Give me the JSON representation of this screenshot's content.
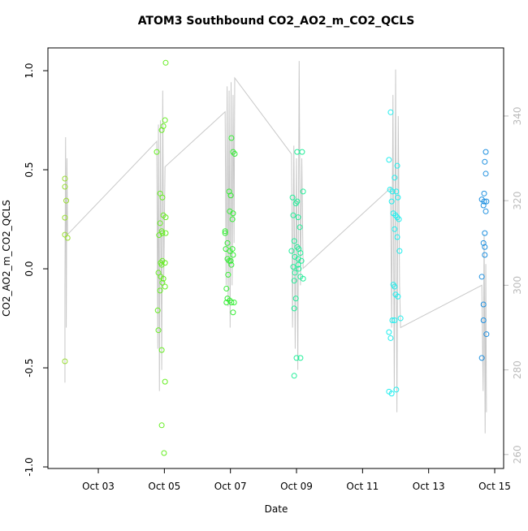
{
  "chart_data": {
    "type": "scatter",
    "title": "ATOM3 Southbound CO2_AO2_m_CO2_QCLS",
    "x_label": "Date",
    "y_label": "CO2_AO2_m_CO2_QCLS",
    "xlim": [
      1.475,
      15.27
    ],
    "xticks": [
      {
        "value": 3,
        "label": "Oct 03"
      },
      {
        "value": 5,
        "label": "Oct 05"
      },
      {
        "value": 7,
        "label": "Oct 07"
      },
      {
        "value": 9,
        "label": "Oct 09"
      },
      {
        "value": 11,
        "label": "Oct 11"
      },
      {
        "value": 13,
        "label": "Oct 13"
      },
      {
        "value": 15,
        "label": "Oct 15"
      }
    ],
    "ylim": [
      -1.008,
      1.115
    ],
    "yticks": [
      {
        "value": -1,
        "label": "-1.0"
      },
      {
        "value": -0.5,
        "label": "-0.5"
      },
      {
        "value": 0,
        "label": "0.0"
      },
      {
        "value": 0.5,
        "label": "0.5"
      },
      {
        "value": 1,
        "label": "1.0"
      }
    ],
    "y2lim": [
      256.7,
      356.1
    ],
    "y2ticks": [
      260,
      280,
      300,
      320,
      340
    ],
    "y2_color": "#bbbbbb",
    "series": [
      {
        "type": "line",
        "axis": "y2",
        "color": "#c8c8c8",
        "x": [
          1.99,
          1.99,
          2.01,
          2.03,
          2.05,
          2.07,
          4.77,
          4.8,
          4.82,
          4.85,
          4.88,
          4.92,
          4.95,
          4.98,
          5.02,
          6.84,
          6.87,
          6.9,
          6.93,
          6.96,
          6.99,
          7.02,
          7.05,
          7.08,
          7.11,
          7.13,
          8.85,
          8.88,
          8.92,
          8.96,
          9.0,
          9.04,
          9.08,
          9.12,
          9.16,
          9.2,
          11.85,
          11.88,
          11.92,
          11.96,
          12.0,
          12.04,
          12.08,
          12.12,
          12.15,
          14.61,
          14.65,
          14.68,
          14.71,
          14.73,
          14.75
        ],
        "values": [
          277,
          300,
          335,
          290,
          330,
          312,
          334,
          285,
          338,
          275,
          339,
          280,
          346,
          300,
          328,
          341,
          300,
          347,
          295,
          346,
          290,
          348,
          300,
          345,
          310,
          349,
          331,
          290,
          333,
          285,
          330,
          280,
          353,
          300,
          330,
          304,
          323,
          290,
          345,
          275,
          351,
          270,
          340,
          300,
          290,
          300,
          275,
          312,
          265,
          305,
          270
        ]
      },
      {
        "type": "scatter",
        "color": "#99dd33",
        "x": [
          1.99,
          1.99,
          2.03,
          1.99,
          1.99,
          2.07,
          1.99
        ],
        "values": [
          0.455,
          0.414,
          0.344,
          0.258,
          0.172,
          0.156,
          -0.467
        ]
      },
      {
        "type": "scatter",
        "color": "#66ee22",
        "x": [
          5.04,
          5.02,
          4.97,
          4.92,
          4.77,
          4.87,
          4.94,
          4.97,
          5.04,
          4.87,
          4.92,
          4.94,
          5.04,
          4.84,
          4.89,
          4.92,
          4.94,
          5.02,
          4.82,
          4.89,
          4.97,
          4.94,
          5.02,
          4.8,
          4.87,
          4.82,
          4.92,
          5.02,
          4.92,
          4.99
        ],
        "values": [
          1.04,
          0.75,
          0.72,
          0.7,
          0.59,
          0.38,
          0.36,
          0.27,
          0.26,
          0.23,
          0.19,
          0.18,
          0.18,
          0.17,
          0.03,
          0.02,
          0.04,
          0.03,
          -0.02,
          -0.04,
          -0.05,
          -0.07,
          -0.09,
          -0.21,
          -0.11,
          -0.31,
          -0.41,
          -0.57,
          -0.79,
          -0.93
        ]
      },
      {
        "type": "scatter",
        "color": "#33ee33",
        "x": [
          7.03,
          7.08,
          7.13,
          6.96,
          7.01,
          6.98,
          7.08,
          7.06,
          6.84,
          6.84,
          6.91,
          6.86,
          6.98,
          7.06,
          7.08,
          6.91,
          6.96,
          7.01,
          7.03,
          6.93,
          6.88,
          6.91,
          6.88,
          6.98,
          7.03,
          7.11,
          7.08
        ],
        "values": [
          0.66,
          0.59,
          0.58,
          0.39,
          0.37,
          0.29,
          0.28,
          0.25,
          0.19,
          0.18,
          0.13,
          0.1,
          0.09,
          0.1,
          0.07,
          0.05,
          0.04,
          0.04,
          0.02,
          -0.03,
          -0.1,
          -0.15,
          -0.17,
          -0.16,
          -0.17,
          -0.17,
          -0.22
        ]
      },
      {
        "type": "scatter",
        "color": "#22ee99",
        "x": [
          9.02,
          9.17,
          9.2,
          8.88,
          9.02,
          8.98,
          8.9,
          9.05,
          9.1,
          8.93,
          9.02,
          9.07,
          8.85,
          9.12,
          8.95,
          9.05,
          9.15,
          9.05,
          8.9,
          9.07,
          8.95,
          9.12,
          9.2,
          8.93,
          8.98,
          8.93,
          9.0,
          9.12,
          8.93
        ],
        "values": [
          0.59,
          0.59,
          0.39,
          0.36,
          0.34,
          0.33,
          0.27,
          0.26,
          0.21,
          0.14,
          0.11,
          0.1,
          0.09,
          0.08,
          0.06,
          0.05,
          0.04,
          0.02,
          0.01,
          0.0,
          -0.02,
          -0.04,
          -0.05,
          -0.06,
          -0.15,
          -0.2,
          -0.45,
          -0.45,
          -0.54
        ]
      },
      {
        "type": "scatter",
        "color": "#22eeee",
        "x": [
          11.85,
          11.8,
          12.05,
          11.97,
          11.83,
          11.9,
          12.02,
          12.07,
          11.88,
          11.93,
          12.0,
          12.05,
          12.1,
          11.97,
          12.05,
          12.12,
          11.93,
          11.97,
          12.0,
          12.07,
          11.9,
          11.97,
          11.8,
          11.85,
          12.15,
          11.8,
          11.88,
          12.02
        ],
        "values": [
          0.79,
          0.55,
          0.52,
          0.46,
          0.4,
          0.39,
          0.39,
          0.36,
          0.34,
          0.28,
          0.27,
          0.26,
          0.25,
          0.2,
          0.16,
          0.09,
          -0.08,
          -0.09,
          -0.13,
          -0.14,
          -0.26,
          -0.26,
          -0.32,
          -0.35,
          -0.25,
          -0.62,
          -0.63,
          -0.61
        ]
      },
      {
        "type": "scatter",
        "color": "#1e90e0",
        "x": [
          14.73,
          14.7,
          14.73,
          14.68,
          14.61,
          14.68,
          14.75,
          14.66,
          14.73,
          14.7,
          14.66,
          14.7,
          14.7,
          14.61,
          14.66,
          14.66,
          14.75,
          14.61
        ],
        "values": [
          0.59,
          0.54,
          0.48,
          0.38,
          0.35,
          0.34,
          0.34,
          0.32,
          0.29,
          0.18,
          0.13,
          0.11,
          0.07,
          -0.04,
          -0.18,
          -0.26,
          -0.33,
          -0.45
        ]
      }
    ]
  }
}
